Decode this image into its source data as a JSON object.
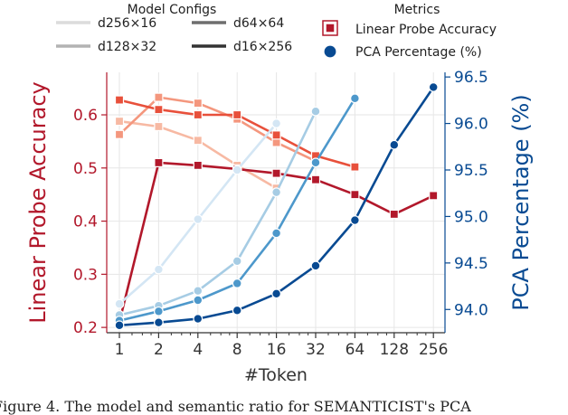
{
  "caption": "Figure 4. The model and semantic ratio for SEMANTICIST's PCA",
  "legend_configs": {
    "title": "Model Configs",
    "items": [
      "d256×16",
      "d128×32",
      "d64×64",
      "d16×256"
    ]
  },
  "legend_metrics": {
    "title": "Metrics",
    "items": [
      "Linear Probe Accuracy",
      "PCA Percentage (%)"
    ]
  },
  "colors": {
    "red": [
      "#f7b9a3",
      "#f4977e",
      "#e8503b",
      "#b2182b"
    ],
    "blue": [
      "#d4e6f4",
      "#a6cce4",
      "#4d98cb",
      "#084a92"
    ],
    "red_text": "#b2182b",
    "blue_text": "#084a92"
  },
  "chart_data": {
    "type": "line",
    "xlabel": "#Token",
    "ylabel_left": "Linear Probe Accuracy",
    "ylabel_right": "PCA Percentage (%)",
    "x_scale": "log2",
    "x_ticks": [
      1,
      2,
      4,
      8,
      16,
      32,
      64,
      128,
      256
    ],
    "x_tick_labels": [
      "1",
      "2",
      "4",
      "8",
      "16",
      "32",
      "64",
      "128",
      "256"
    ],
    "left_ylim": [
      0.19,
      0.68
    ],
    "left_ticks": [
      0.2,
      0.3,
      0.4,
      0.5,
      0.6
    ],
    "left_tick_labels": [
      "0.2",
      "0.3",
      "0.4",
      "0.5",
      "0.6"
    ],
    "right_ylim": [
      93.75,
      96.55
    ],
    "right_ticks": [
      94.0,
      94.5,
      95.0,
      95.5,
      96.0,
      96.5
    ],
    "right_tick_labels": [
      "94.0",
      "94.5",
      "95.0",
      "95.5",
      "96.0",
      "96.5"
    ],
    "series": [
      {
        "name": "d256×16",
        "metric": "accuracy",
        "x": [
          1,
          2,
          4,
          8,
          16
        ],
        "y": [
          0.588,
          0.578,
          0.552,
          0.505,
          0.462
        ]
      },
      {
        "name": "d128×32",
        "metric": "accuracy",
        "x": [
          1,
          2,
          4,
          8,
          16,
          32
        ],
        "y": [
          0.563,
          0.633,
          0.622,
          0.592,
          0.548,
          0.513
        ]
      },
      {
        "name": "d64×64",
        "metric": "accuracy",
        "x": [
          1,
          2,
          4,
          8,
          16,
          32,
          64
        ],
        "y": [
          0.628,
          0.61,
          0.6,
          0.6,
          0.562,
          0.523,
          0.502
        ]
      },
      {
        "name": "d16×256",
        "metric": "accuracy",
        "x": [
          1,
          2,
          4,
          8,
          16,
          32,
          64,
          128,
          256
        ],
        "y": [
          0.21,
          0.51,
          0.505,
          0.498,
          0.49,
          0.478,
          0.45,
          0.413,
          0.448
        ]
      },
      {
        "name": "d256×16",
        "metric": "pca",
        "x": [
          1,
          2,
          4,
          8,
          16
        ],
        "y": [
          94.06,
          94.43,
          94.97,
          95.5,
          96.0
        ]
      },
      {
        "name": "d128×32",
        "metric": "pca",
        "x": [
          1,
          2,
          4,
          8,
          16,
          32
        ],
        "y": [
          93.94,
          94.04,
          94.2,
          94.52,
          95.26,
          96.13
        ]
      },
      {
        "name": "d64×64",
        "metric": "pca",
        "x": [
          1,
          2,
          4,
          8,
          16,
          32,
          64
        ],
        "y": [
          93.88,
          93.98,
          94.1,
          94.28,
          94.82,
          95.58,
          96.27
        ]
      },
      {
        "name": "d16×256",
        "metric": "pca",
        "x": [
          1,
          2,
          4,
          8,
          16,
          32,
          64,
          128,
          256
        ],
        "y": [
          93.83,
          93.86,
          93.9,
          93.99,
          94.17,
          94.47,
          94.96,
          95.77,
          96.39
        ]
      }
    ]
  }
}
